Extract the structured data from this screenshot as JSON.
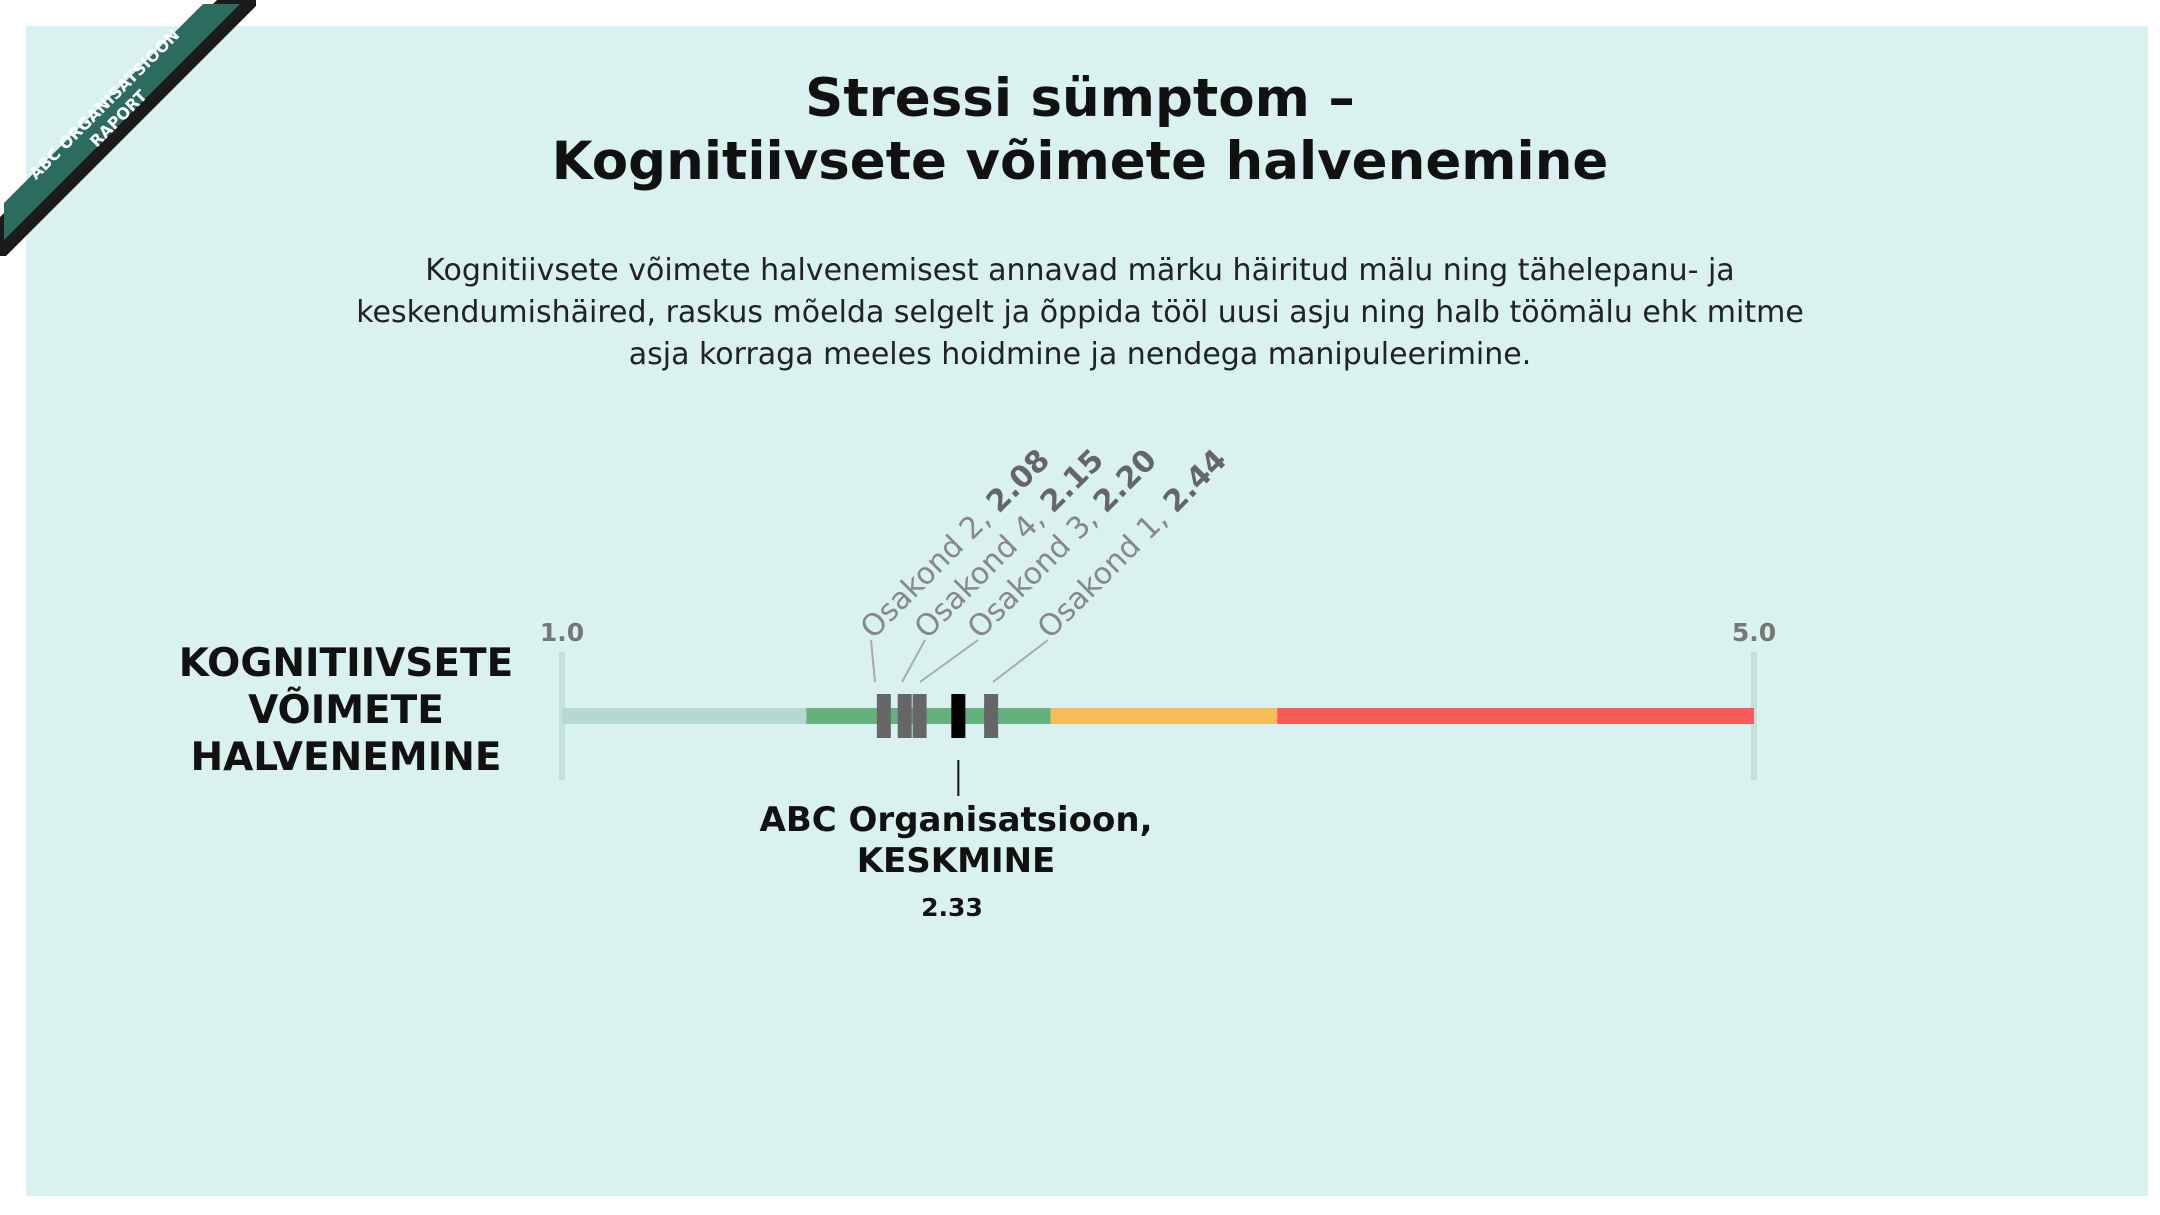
{
  "ribbon": {
    "line1": "ABC ORGANISATSIOON",
    "line2": "RAPORT"
  },
  "header": {
    "title_line1": "Stressi sümptom –",
    "title_line2": "Kognitiivsete võimete halvenemine",
    "description": "Kognitiivsete võimete halvenemisest annavad märku häiritud mälu ning tähelepanu- ja keskendumishäired, raskus mõelda selgelt ja õppida tööl uusi asju ning halb töömälu ehk mitme asja korraga meeles hoidmine ja nendega manipuleerimine."
  },
  "chart_data": {
    "type": "scatter",
    "row_label": "KOGNITIIVSETE VÕIMETE HALVENEMINE",
    "scale_min": 1.0,
    "scale_max": 5.0,
    "scale_min_label": "1.0",
    "scale_max_label": "5.0",
    "bands": [
      {
        "from": 1.0,
        "to": 1.82,
        "color": "#b5d9cf"
      },
      {
        "from": 1.82,
        "to": 2.64,
        "color": "#66b07d"
      },
      {
        "from": 2.64,
        "to": 3.4,
        "color": "#f7bd5a"
      },
      {
        "from": 3.4,
        "to": 5.0,
        "color": "#f45c5c"
      }
    ],
    "departments": [
      {
        "name": "Osakond 2",
        "value": 2.08,
        "value_label": "2.08"
      },
      {
        "name": "Osakond 4",
        "value": 2.15,
        "value_label": "2.15"
      },
      {
        "name": "Osakond 3",
        "value": 2.2,
        "value_label": "2.20"
      },
      {
        "name": "Osakond 1",
        "value": 2.44,
        "value_label": "2.44"
      }
    ],
    "average": {
      "name_line1": "ABC Organisatsioon,",
      "name_line2": "KESKMINE",
      "value": 2.33,
      "value_label": "2.33"
    },
    "colors": {
      "department_marker": "#666666",
      "average_marker": "#000000",
      "axis_tick": "#c3e1da"
    }
  }
}
